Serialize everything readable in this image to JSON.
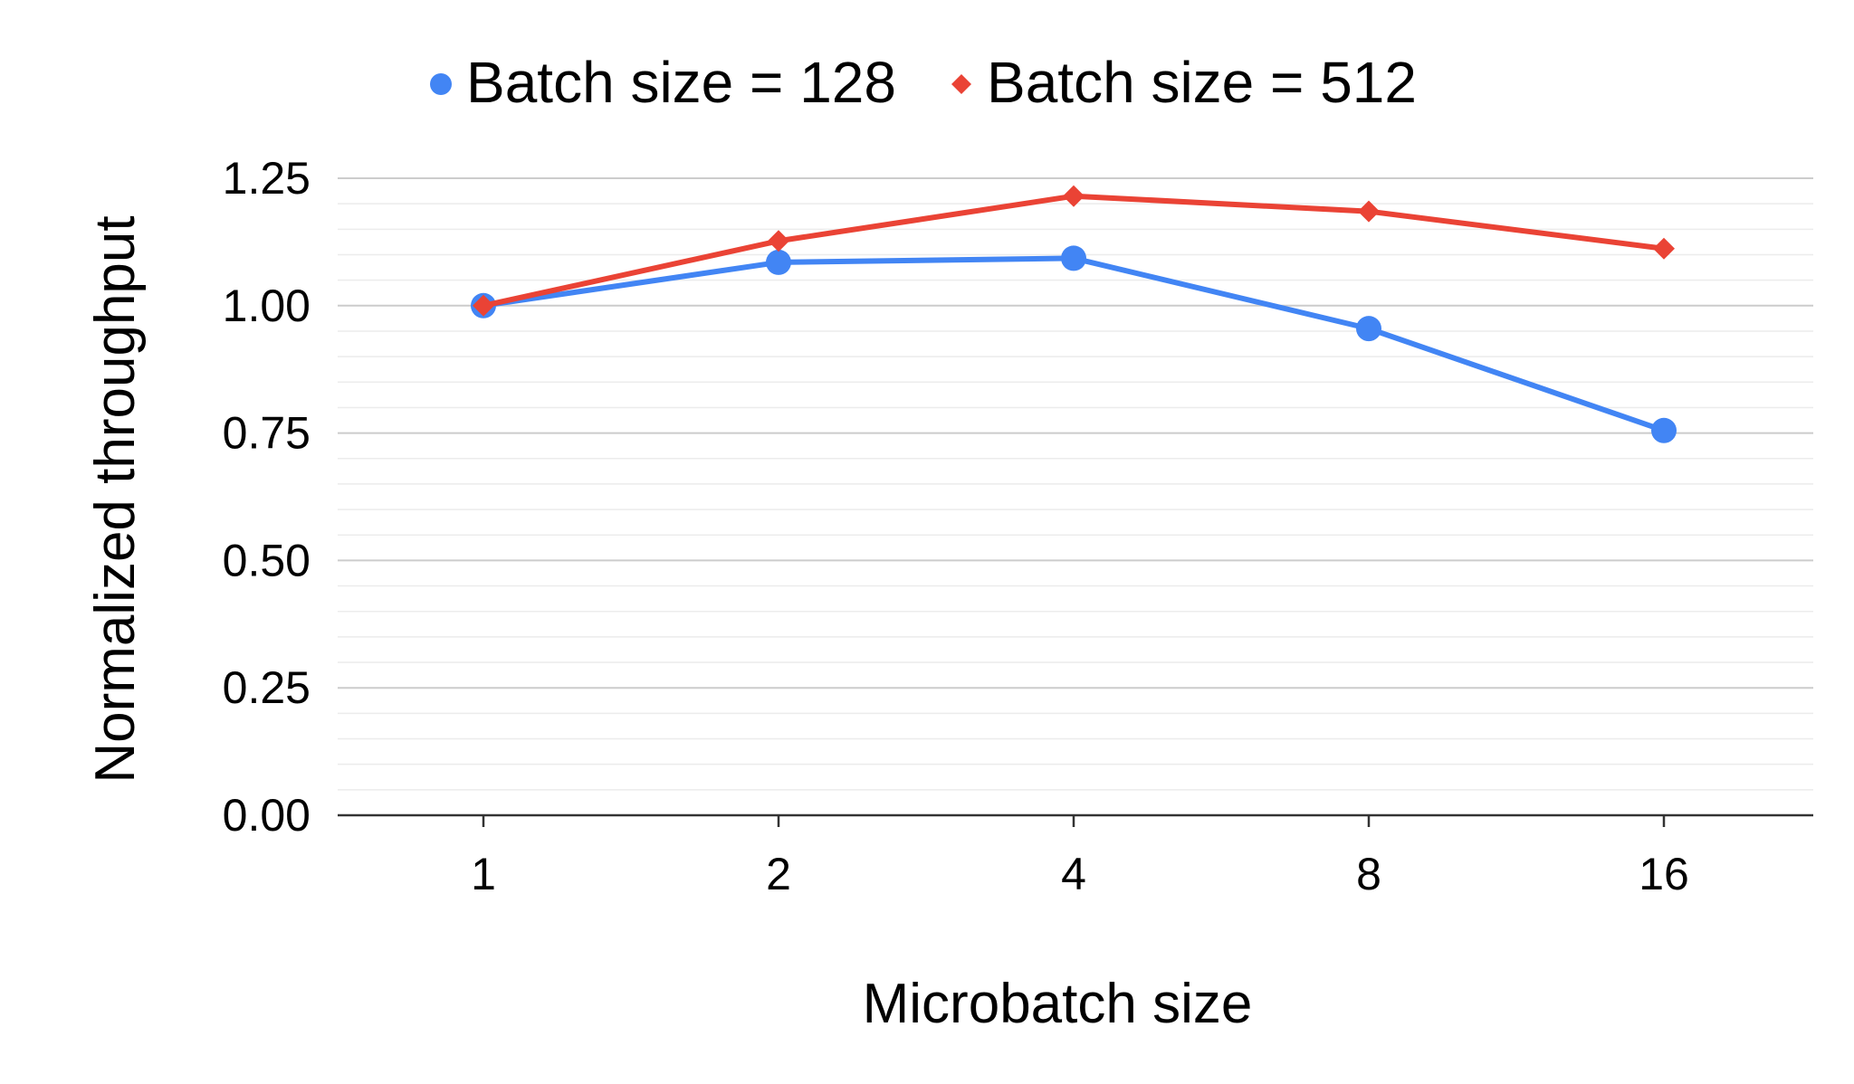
{
  "chart_data": {
    "type": "line",
    "title": "",
    "xlabel": "Microbatch size",
    "ylabel": "Normalized throughput",
    "categories": [
      "1",
      "2",
      "4",
      "8",
      "16"
    ],
    "ylim": [
      0,
      1.25
    ],
    "yticks": [
      0,
      0.25,
      0.5,
      0.75,
      1.0,
      1.25
    ],
    "ytick_labels": [
      "0.00",
      "0.25",
      "0.50",
      "0.75",
      "1.00",
      "1.25"
    ],
    "grid": true,
    "legend_position": "top-center",
    "series": [
      {
        "name": "Batch size = 128",
        "color": "#4285f4",
        "marker": "circle",
        "values": [
          1.0,
          1.085,
          1.093,
          0.955,
          0.755
        ]
      },
      {
        "name": "Batch size = 512",
        "color": "#ea4335",
        "marker": "diamond",
        "values": [
          1.0,
          1.127,
          1.215,
          1.185,
          1.112
        ]
      }
    ]
  }
}
